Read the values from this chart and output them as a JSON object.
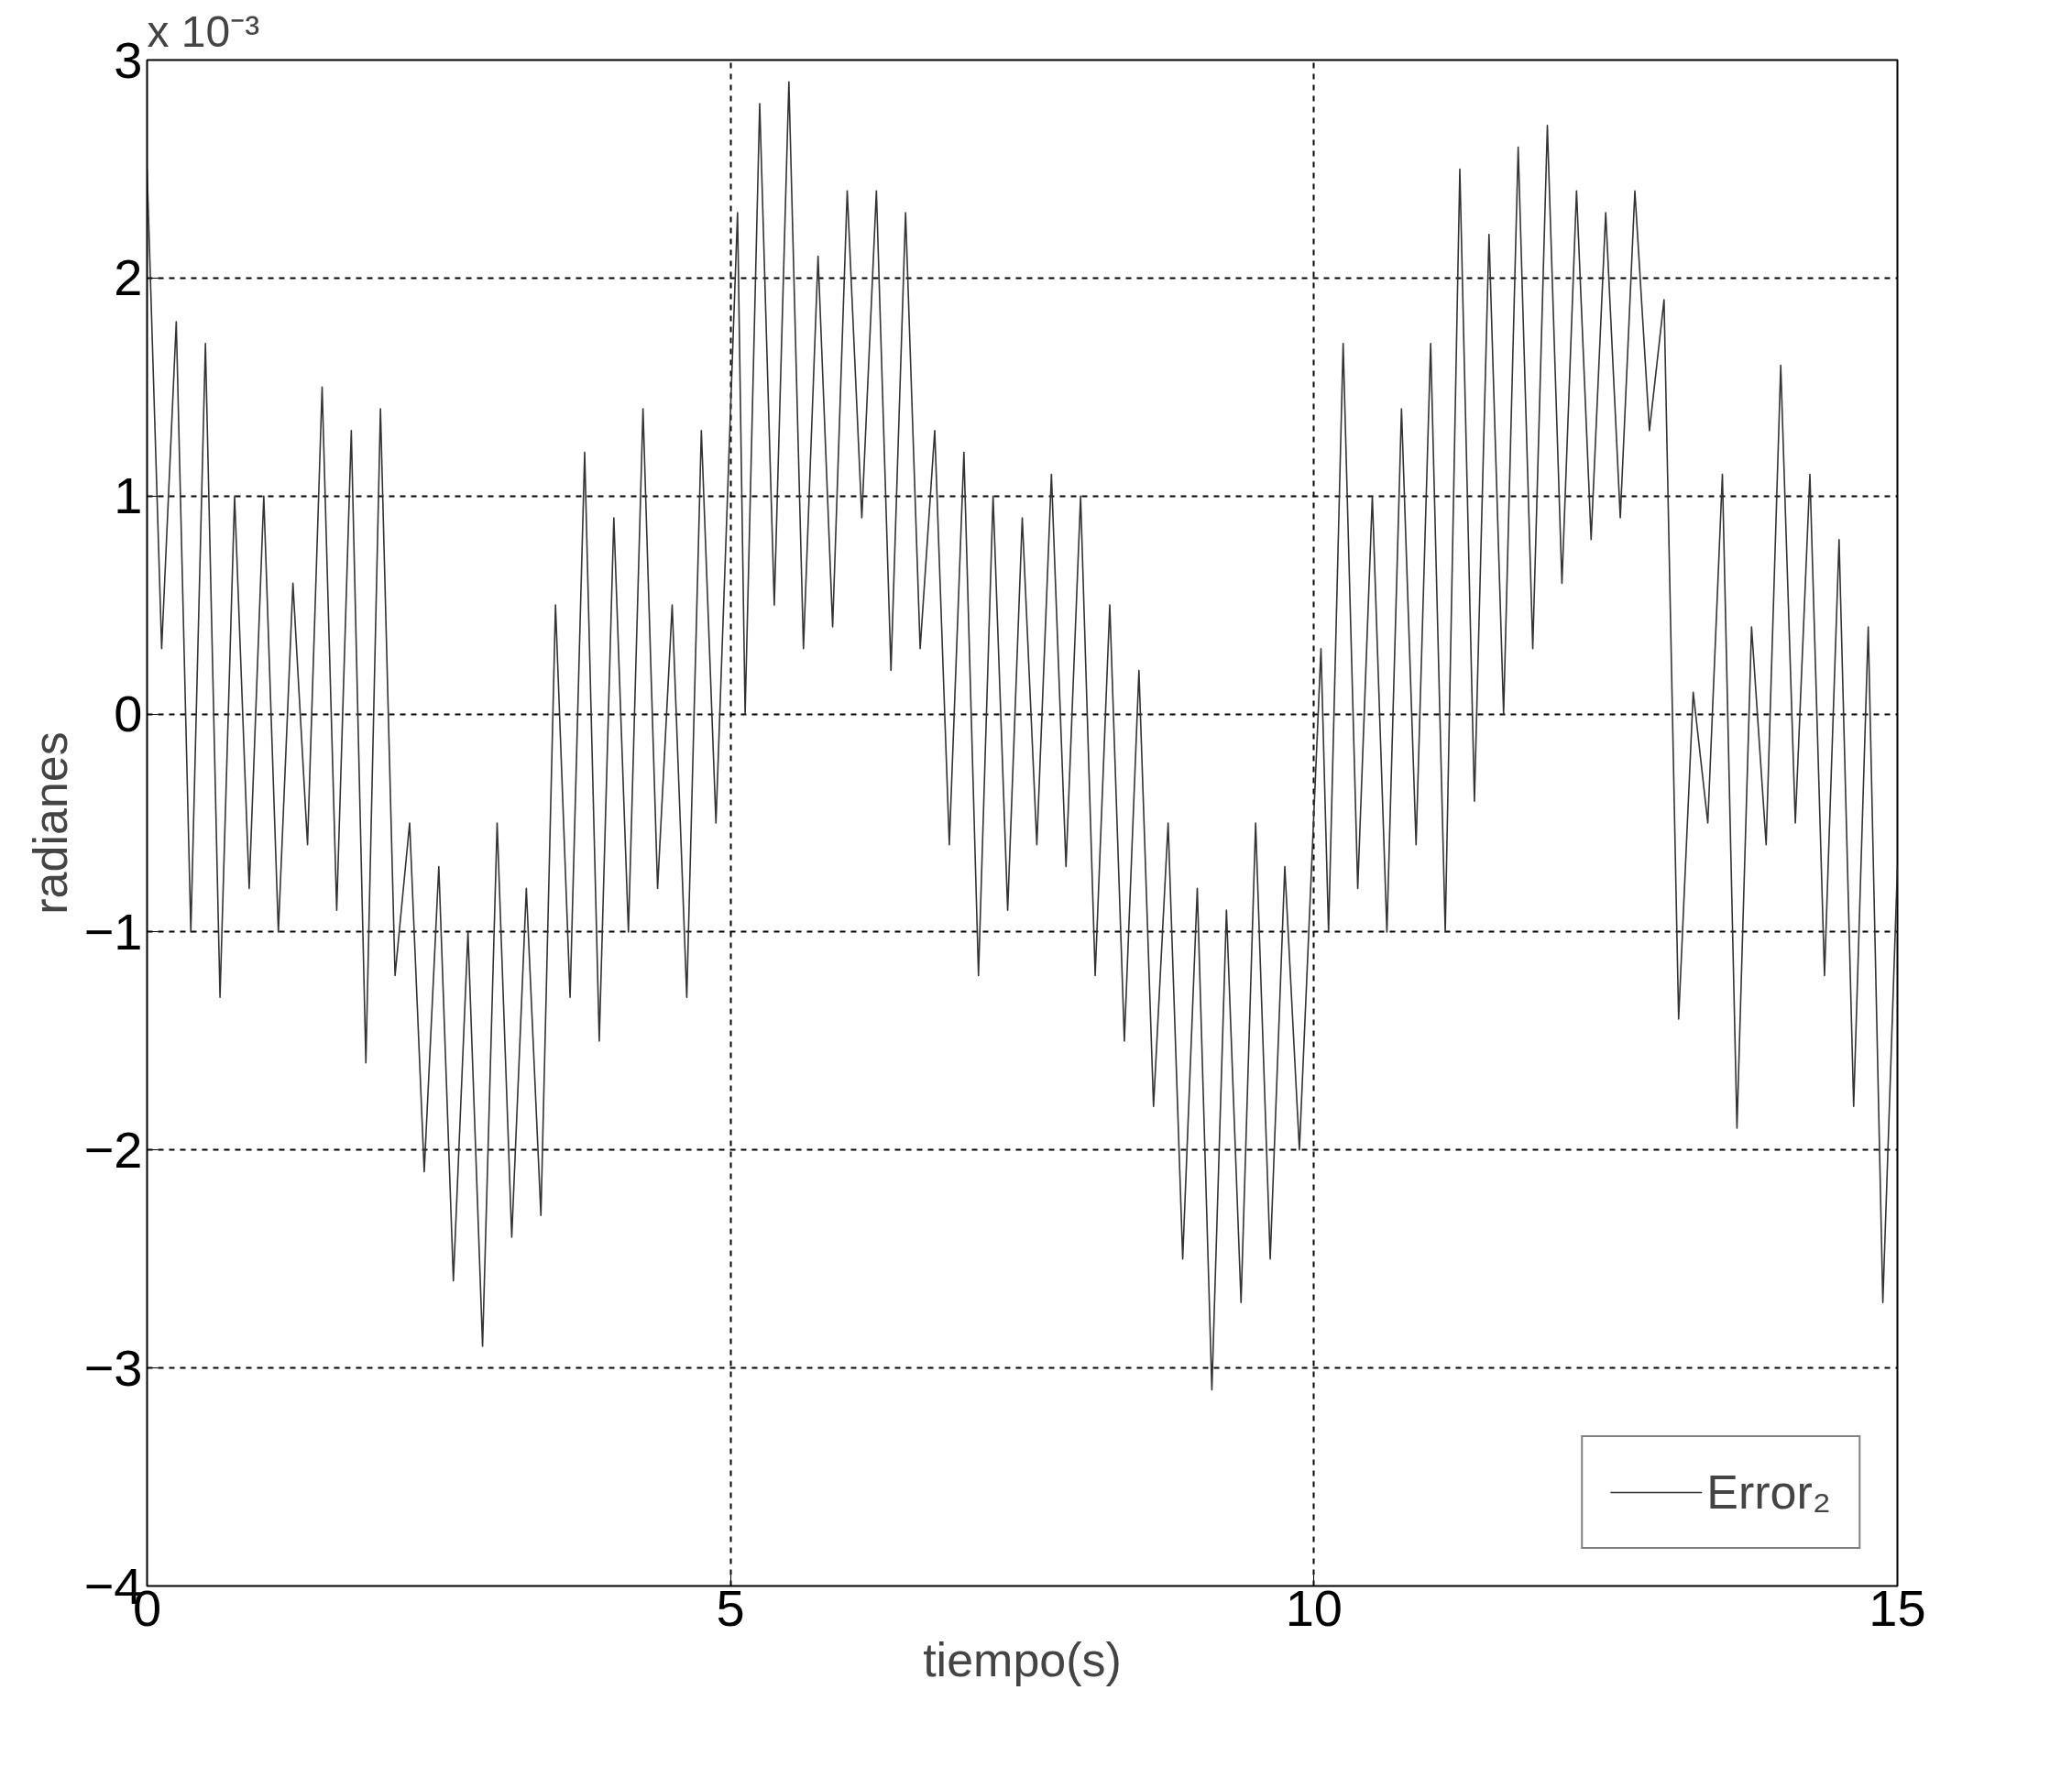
{
  "chart_data": {
    "type": "line",
    "xlabel": "tiempo(s)",
    "ylabel": "radianes",
    "annotations": [
      "x 10⁻³"
    ],
    "xlim": [
      0,
      15
    ],
    "xticks": [
      0,
      5,
      10,
      15
    ],
    "ylim": [
      -4,
      3
    ],
    "yticks": [
      -4,
      -3,
      -2,
      -1,
      0,
      1,
      2,
      3
    ],
    "grid": true,
    "legend": "bottom right",
    "line_style": "solid",
    "x": [
      0,
      0.125,
      0.25,
      0.375,
      0.5,
      0.625,
      0.75,
      0.875,
      1,
      1.125,
      1.25,
      1.375,
      1.5,
      1.625,
      1.75,
      1.875,
      2,
      2.125,
      2.25,
      2.375,
      2.5,
      2.625,
      2.75,
      2.875,
      3,
      3.125,
      3.25,
      3.375,
      3.5,
      3.625,
      3.75,
      3.875,
      4,
      4.125,
      4.25,
      4.375,
      4.5,
      4.625,
      4.75,
      4.875,
      5.06,
      5.125,
      5.25,
      5.375,
      5.5,
      5.625,
      5.75,
      5.875,
      6,
      6.125,
      6.25,
      6.375,
      6.5,
      6.625,
      6.75,
      6.875,
      7,
      7.125,
      7.25,
      7.375,
      7.5,
      7.625,
      7.75,
      7.875,
      8,
      8.125,
      8.25,
      8.375,
      8.5,
      8.625,
      8.75,
      8.875,
      9,
      9.125,
      9.25,
      9.375,
      9.5,
      9.625,
      9.75,
      9.875,
      10.06,
      10.125,
      10.25,
      10.375,
      10.5,
      10.625,
      10.75,
      10.875,
      11,
      11.125,
      11.25,
      11.375,
      11.5,
      11.625,
      11.75,
      11.875,
      12,
      12.125,
      12.25,
      12.375,
      12.5,
      12.625,
      12.75,
      12.875,
      13,
      13.125,
      13.25,
      13.375,
      13.5,
      13.625,
      13.75,
      13.875,
      14,
      14.125,
      14.25,
      14.375,
      14.5,
      14.625,
      14.75,
      14.875,
      15
    ],
    "series": [
      {
        "name": "Error₂",
        "color": "#333333",
        "values": [
          2.5,
          0.3,
          1.8,
          -1.0,
          1.7,
          -1.3,
          1.0,
          -0.8,
          1.0,
          -1.0,
          0.6,
          -0.6,
          1.5,
          -0.9,
          1.3,
          -1.6,
          1.4,
          -1.2,
          -0.5,
          -2.1,
          -0.7,
          -2.6,
          -1.0,
          -2.9,
          -0.5,
          -2.4,
          -0.8,
          -2.3,
          0.5,
          -1.3,
          1.2,
          -1.5,
          0.9,
          -1.0,
          1.4,
          -0.8,
          0.5,
          -1.3,
          1.3,
          -0.5,
          2.3,
          0.0,
          2.8,
          0.5,
          2.9,
          0.3,
          2.1,
          0.4,
          2.4,
          0.9,
          2.4,
          0.2,
          2.3,
          0.3,
          1.3,
          -0.6,
          1.2,
          -1.2,
          1.0,
          -0.9,
          0.9,
          -0.6,
          1.1,
          -0.7,
          1.0,
          -1.2,
          0.5,
          -1.5,
          0.2,
          -1.8,
          -0.5,
          -2.5,
          -0.8,
          -3.1,
          -0.9,
          -2.7,
          -0.5,
          -2.5,
          -0.7,
          -2.0,
          0.3,
          -1.0,
          1.7,
          -0.8,
          1.0,
          -1.0,
          1.4,
          -0.6,
          1.7,
          -1.0,
          2.5,
          -0.4,
          2.2,
          0.0,
          2.6,
          0.3,
          2.7,
          0.6,
          2.4,
          0.8,
          2.3,
          0.9,
          2.4,
          1.3,
          1.9,
          -1.4,
          0.1,
          -0.5,
          1.1,
          -1.9,
          0.4,
          -0.6,
          1.6,
          -0.5,
          1.1,
          -1.2,
          0.8,
          -1.8,
          0.4,
          -2.7,
          -0.7
        ]
      }
    ]
  }
}
